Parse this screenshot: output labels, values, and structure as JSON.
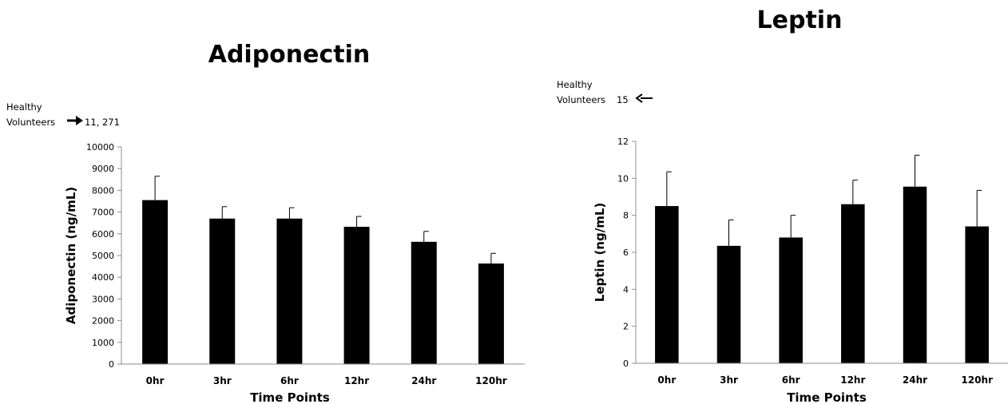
{
  "chart_data": [
    {
      "type": "bar",
      "title": "Adiponectin",
      "xlabel": "Time Points",
      "ylabel": "Adiponectin  (ng/mL)",
      "categories": [
        "0hr",
        "3hr",
        "6hr",
        "12hr",
        "24hr",
        "120hr"
      ],
      "values": [
        7550,
        6700,
        6700,
        6320,
        5630,
        4630
      ],
      "error": [
        1100,
        550,
        500,
        480,
        480,
        470
      ],
      "ylim": [
        0,
        10000
      ],
      "yticks": [
        0,
        1000,
        2000,
        3000,
        4000,
        5000,
        6000,
        7000,
        8000,
        9000,
        10000
      ],
      "bar_color": "#000000",
      "grid": false,
      "annotation": {
        "line1": "Healthy",
        "line2": "Volunteers",
        "value": "11, 271",
        "arrow": "right"
      }
    },
    {
      "type": "bar",
      "title": "Leptin",
      "xlabel": "Time Points",
      "ylabel": "Leptin (ng/mL)",
      "categories": [
        "0hr",
        "3hr",
        "6hr",
        "12hr",
        "24hr",
        "120hr"
      ],
      "values": [
        8.5,
        6.35,
        6.8,
        8.6,
        9.55,
        7.4
      ],
      "error": [
        1.85,
        1.4,
        1.2,
        1.3,
        1.7,
        1.95
      ],
      "ylim": [
        0,
        12
      ],
      "yticks": [
        0,
        2,
        4,
        6,
        8,
        10,
        12
      ],
      "bar_color": "#000000",
      "grid": false,
      "annotation": {
        "line1": "Healthy",
        "line2": "Volunteers",
        "value": "15",
        "arrow": "left"
      }
    }
  ]
}
